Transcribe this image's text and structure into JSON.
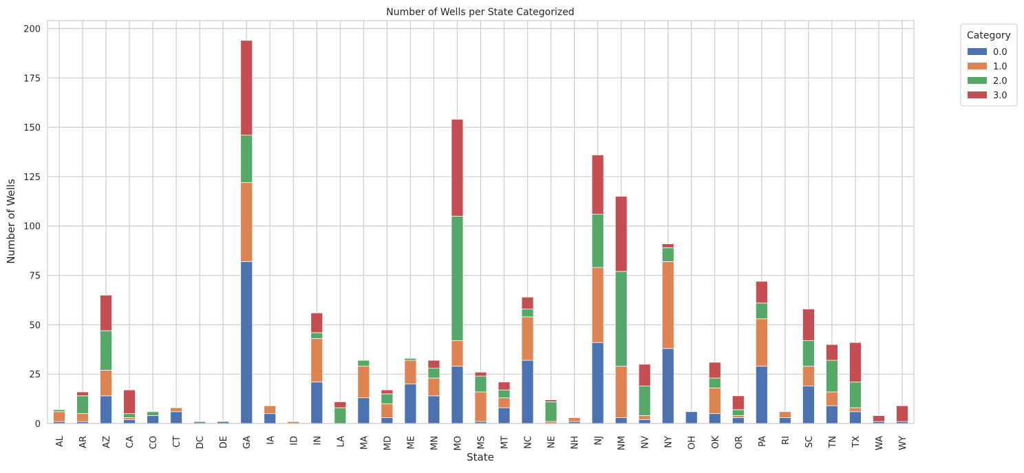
{
  "chart_data": {
    "type": "bar",
    "stacked": true,
    "title": "Number of Wells per State Categorized",
    "xlabel": "State",
    "ylabel": "Number of Wells",
    "ylim": [
      0,
      204
    ],
    "yticks": [
      0,
      25,
      50,
      75,
      100,
      125,
      150,
      175,
      200
    ],
    "grid": true,
    "legend": {
      "title": "Category",
      "placement": "outside-top-right"
    },
    "categories": [
      "AL",
      "AR",
      "AZ",
      "CA",
      "CO",
      "CT",
      "DC",
      "DE",
      "GA",
      "IA",
      "ID",
      "IN",
      "LA",
      "MA",
      "MD",
      "ME",
      "MN",
      "MO",
      "MS",
      "MT",
      "NC",
      "NE",
      "NH",
      "NJ",
      "NM",
      "NV",
      "NY",
      "OH",
      "OK",
      "OR",
      "PA",
      "RI",
      "SC",
      "TN",
      "TX",
      "WA",
      "WY"
    ],
    "series": [
      {
        "name": "0.0",
        "color": "#4c72b0",
        "values": [
          1,
          1,
          14,
          2,
          4,
          6,
          0,
          1,
          82,
          5,
          0,
          21,
          0,
          13,
          3,
          20,
          14,
          29,
          1,
          8,
          32,
          0,
          1,
          41,
          3,
          2,
          38,
          6,
          5,
          3,
          29,
          3,
          19,
          9,
          6,
          1,
          1
        ]
      },
      {
        "name": "1.0",
        "color": "#dd8452",
        "values": [
          5,
          4,
          13,
          1,
          0,
          2,
          0,
          0,
          40,
          4,
          1,
          22,
          0,
          16,
          7,
          12,
          9,
          13,
          15,
          5,
          22,
          1,
          2,
          38,
          26,
          2,
          44,
          0,
          13,
          1,
          24,
          3,
          10,
          7,
          2,
          0,
          0
        ]
      },
      {
        "name": "2.0",
        "color": "#55a868",
        "values": [
          1,
          9,
          20,
          2,
          2,
          0,
          1,
          0,
          24,
          0,
          0,
          3,
          8,
          3,
          5,
          1,
          5,
          63,
          8,
          4,
          4,
          10,
          0,
          27,
          48,
          15,
          7,
          0,
          5,
          3,
          8,
          0,
          13,
          16,
          13,
          0,
          0
        ]
      },
      {
        "name": "3.0",
        "color": "#c44e52",
        "values": [
          0,
          2,
          18,
          12,
          0,
          0,
          0,
          0,
          48,
          0,
          0,
          10,
          3,
          0,
          2,
          0,
          4,
          49,
          2,
          4,
          6,
          1,
          0,
          30,
          38,
          11,
          2,
          0,
          8,
          7,
          11,
          0,
          16,
          8,
          20,
          3,
          8
        ]
      }
    ]
  }
}
